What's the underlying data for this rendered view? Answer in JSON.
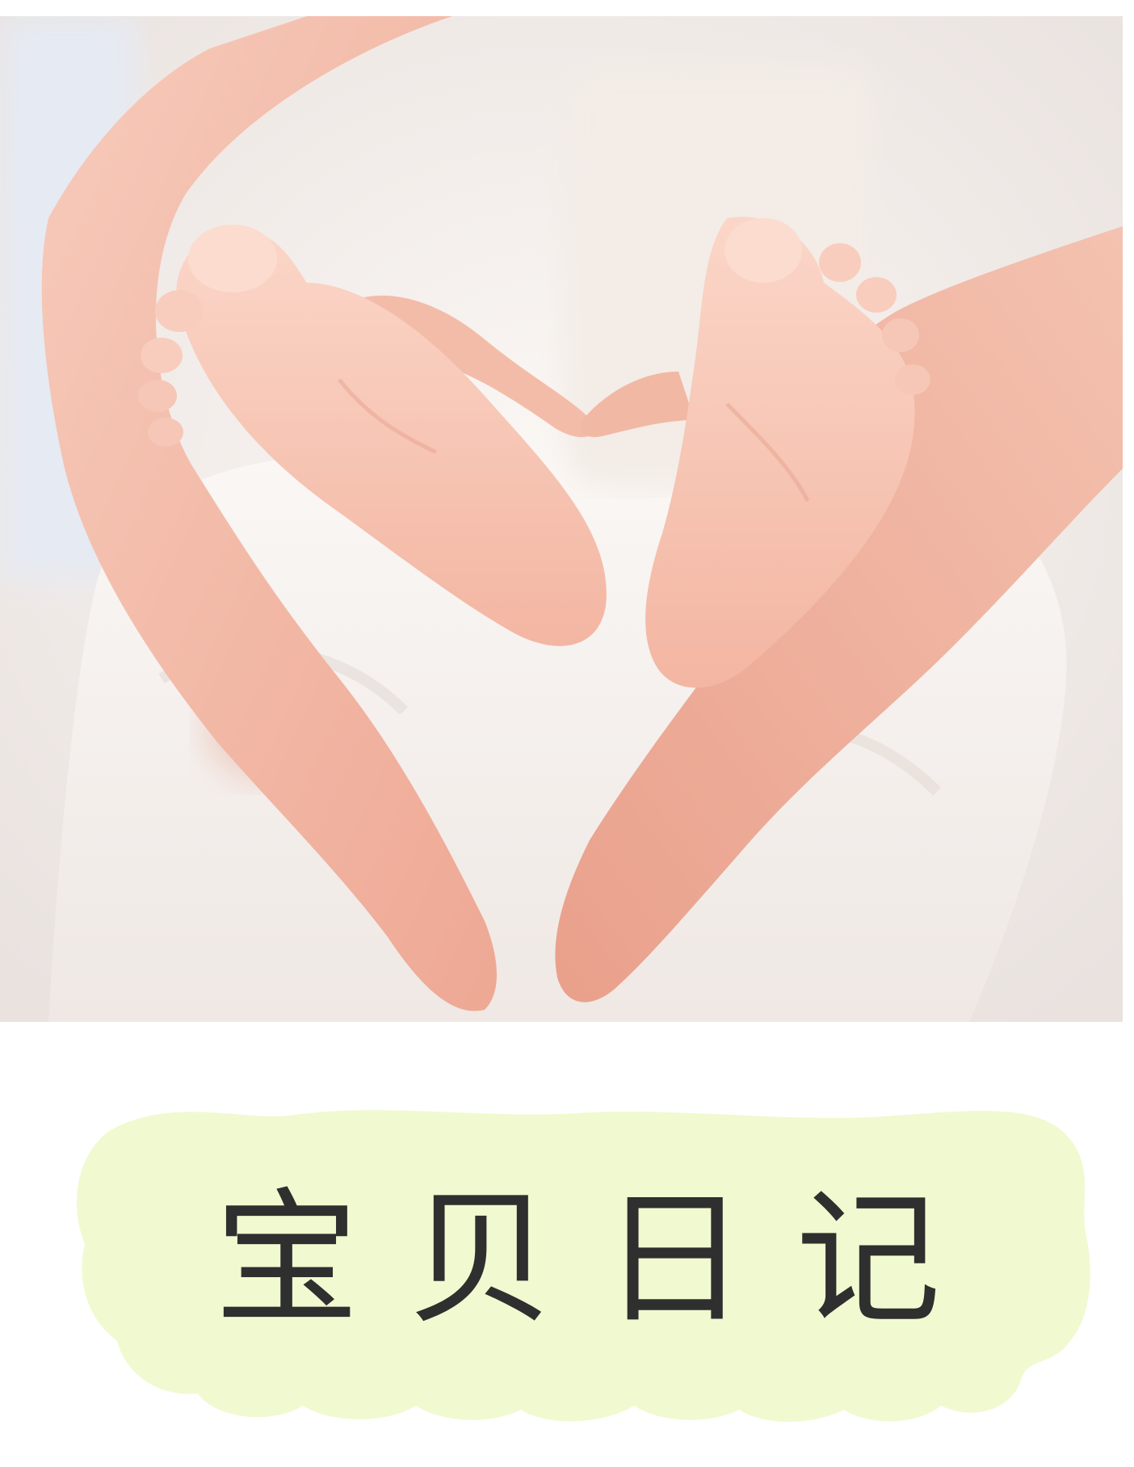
{
  "title": "宝贝日记",
  "photo": {
    "icon": "baby-feet-heart-hands-photo"
  },
  "colors": {
    "cloud": "#f1f9d0",
    "title_text": "#2f2f2f",
    "skin": "#f2b9a6",
    "blanket": "#f7f3f1"
  }
}
